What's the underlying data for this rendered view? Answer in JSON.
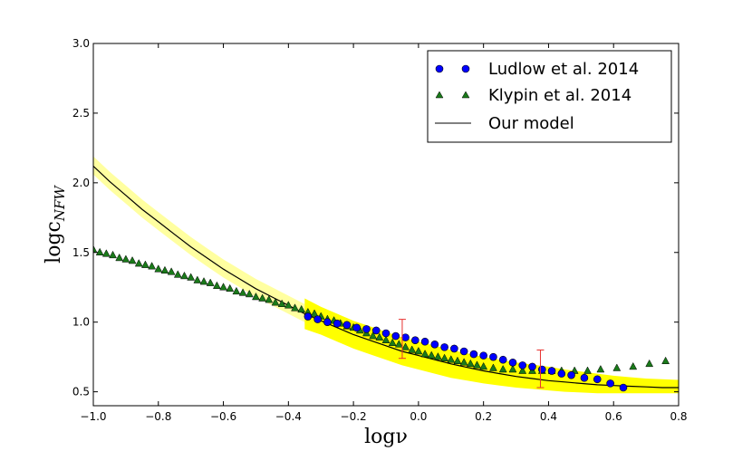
{
  "chart_data": {
    "type": "scatter",
    "title": "",
    "xlabel": "logν",
    "ylabel": "logc_NFW",
    "ylabel_main": "logc",
    "ylabel_sub": "NFW",
    "xlim": [
      -1.0,
      0.8
    ],
    "ylim": [
      0.4,
      3.0
    ],
    "x_ticks": [
      -1.0,
      -0.8,
      -0.6,
      -0.4,
      -0.2,
      0.0,
      0.2,
      0.4,
      0.6,
      0.8
    ],
    "x_tick_labels": [
      "−1.0",
      "−0.8",
      "−0.6",
      "−0.4",
      "−0.2",
      "0.0",
      "0.2",
      "0.4",
      "0.6",
      "0.8"
    ],
    "y_ticks": [
      0.5,
      1.0,
      1.5,
      2.0,
      2.5,
      3.0
    ],
    "y_tick_labels": [
      "0.5",
      "1.0",
      "1.5",
      "2.0",
      "2.5",
      "3.0"
    ],
    "grid": false,
    "legend_position": "top-right",
    "colors": {
      "ludlow": "#0000ff",
      "klypin": "#1a7a1a",
      "model": "#000000",
      "band_light": "#ffffa0",
      "band_bright": "#ffff00",
      "errorbar": "#e8312f"
    },
    "series": [
      {
        "name": "Ludlow et al. 2014",
        "marker": "circle",
        "x": [
          -0.34,
          -0.31,
          -0.28,
          -0.25,
          -0.22,
          -0.19,
          -0.16,
          -0.13,
          -0.1,
          -0.07,
          -0.04,
          -0.01,
          0.02,
          0.05,
          0.08,
          0.11,
          0.14,
          0.17,
          0.2,
          0.23,
          0.26,
          0.29,
          0.32,
          0.35,
          0.38,
          0.41,
          0.44,
          0.47,
          0.51,
          0.55,
          0.59,
          0.63
        ],
        "y": [
          1.04,
          1.02,
          1.0,
          0.99,
          0.98,
          0.96,
          0.95,
          0.94,
          0.92,
          0.9,
          0.89,
          0.87,
          0.86,
          0.84,
          0.82,
          0.81,
          0.79,
          0.77,
          0.76,
          0.75,
          0.73,
          0.71,
          0.69,
          0.68,
          0.66,
          0.65,
          0.63,
          0.62,
          0.6,
          0.59,
          0.56,
          0.53
        ]
      },
      {
        "name": "Klypin et al. 2014",
        "marker": "triangle",
        "x": [
          -1.0,
          -0.98,
          -0.96,
          -0.94,
          -0.92,
          -0.9,
          -0.88,
          -0.86,
          -0.84,
          -0.82,
          -0.8,
          -0.78,
          -0.76,
          -0.74,
          -0.72,
          -0.7,
          -0.68,
          -0.66,
          -0.64,
          -0.62,
          -0.6,
          -0.58,
          -0.56,
          -0.54,
          -0.52,
          -0.5,
          -0.48,
          -0.46,
          -0.44,
          -0.42,
          -0.4,
          -0.38,
          -0.36,
          -0.34,
          -0.32,
          -0.3,
          -0.28,
          -0.26,
          -0.24,
          -0.22,
          -0.2,
          -0.18,
          -0.16,
          -0.14,
          -0.12,
          -0.1,
          -0.08,
          -0.06,
          -0.04,
          -0.02,
          0.0,
          0.02,
          0.04,
          0.06,
          0.08,
          0.1,
          0.12,
          0.14,
          0.16,
          0.18,
          0.2,
          0.23,
          0.26,
          0.29,
          0.32,
          0.35,
          0.38,
          0.41,
          0.44,
          0.48,
          0.52,
          0.56,
          0.61,
          0.66,
          0.71,
          0.76
        ],
        "y": [
          1.52,
          1.5,
          1.49,
          1.48,
          1.46,
          1.45,
          1.44,
          1.42,
          1.41,
          1.4,
          1.38,
          1.37,
          1.36,
          1.34,
          1.33,
          1.32,
          1.3,
          1.29,
          1.28,
          1.26,
          1.25,
          1.24,
          1.22,
          1.21,
          1.2,
          1.18,
          1.17,
          1.16,
          1.14,
          1.13,
          1.12,
          1.1,
          1.09,
          1.07,
          1.06,
          1.04,
          1.02,
          1.01,
          0.99,
          0.97,
          0.96,
          0.94,
          0.92,
          0.9,
          0.89,
          0.87,
          0.85,
          0.84,
          0.82,
          0.8,
          0.79,
          0.77,
          0.76,
          0.75,
          0.74,
          0.73,
          0.72,
          0.71,
          0.7,
          0.69,
          0.68,
          0.67,
          0.66,
          0.66,
          0.65,
          0.65,
          0.65,
          0.65,
          0.65,
          0.65,
          0.65,
          0.66,
          0.67,
          0.68,
          0.7,
          0.72
        ]
      },
      {
        "name": "Our model",
        "marker": "line",
        "x": [
          -1.0,
          -0.95,
          -0.9,
          -0.85,
          -0.8,
          -0.75,
          -0.7,
          -0.65,
          -0.6,
          -0.55,
          -0.5,
          -0.45,
          -0.4,
          -0.35,
          -0.3,
          -0.25,
          -0.2,
          -0.15,
          -0.1,
          -0.05,
          0.0,
          0.05,
          0.1,
          0.15,
          0.2,
          0.25,
          0.3,
          0.35,
          0.4,
          0.45,
          0.5,
          0.55,
          0.6,
          0.65,
          0.7,
          0.75,
          0.8
        ],
        "y": [
          2.12,
          2.01,
          1.91,
          1.81,
          1.72,
          1.63,
          1.54,
          1.46,
          1.38,
          1.31,
          1.24,
          1.18,
          1.12,
          1.06,
          1.01,
          0.96,
          0.91,
          0.87,
          0.83,
          0.79,
          0.76,
          0.73,
          0.7,
          0.675,
          0.65,
          0.63,
          0.61,
          0.595,
          0.58,
          0.57,
          0.56,
          0.55,
          0.545,
          0.54,
          0.535,
          0.53,
          0.53
        ]
      }
    ],
    "band_light": {
      "x": [
        -1.0,
        -0.95,
        -0.9,
        -0.85,
        -0.8,
        -0.75,
        -0.7,
        -0.65,
        -0.6,
        -0.55,
        -0.5,
        -0.45,
        -0.4,
        -0.35
      ],
      "upper": [
        2.19,
        2.08,
        1.98,
        1.88,
        1.79,
        1.7,
        1.61,
        1.53,
        1.45,
        1.38,
        1.31,
        1.25,
        1.19,
        1.13
      ],
      "lower": [
        2.06,
        1.95,
        1.85,
        1.75,
        1.66,
        1.57,
        1.48,
        1.4,
        1.32,
        1.25,
        1.18,
        1.12,
        1.06,
        1.0
      ]
    },
    "band_bright": {
      "x": [
        -0.35,
        -0.3,
        -0.25,
        -0.2,
        -0.15,
        -0.1,
        -0.05,
        0.0,
        0.05,
        0.1,
        0.15,
        0.2,
        0.25,
        0.3,
        0.35,
        0.4,
        0.45,
        0.5,
        0.55,
        0.6,
        0.65,
        0.7,
        0.75,
        0.8
      ],
      "upper": [
        1.17,
        1.11,
        1.06,
        1.01,
        0.97,
        0.93,
        0.89,
        0.86,
        0.83,
        0.8,
        0.775,
        0.75,
        0.73,
        0.71,
        0.695,
        0.68,
        0.66,
        0.645,
        0.63,
        0.615,
        0.605,
        0.595,
        0.59,
        0.585
      ],
      "lower": [
        0.95,
        0.91,
        0.86,
        0.81,
        0.77,
        0.73,
        0.69,
        0.66,
        0.63,
        0.6,
        0.58,
        0.56,
        0.545,
        0.53,
        0.52,
        0.51,
        0.5,
        0.495,
        0.49,
        0.49,
        0.49,
        0.49,
        0.49,
        0.49
      ]
    },
    "error_bars": [
      {
        "x": -0.05,
        "y": 0.88,
        "low": 0.74,
        "high": 1.02
      },
      {
        "x": 0.375,
        "y": 0.66,
        "low": 0.53,
        "high": 0.8
      }
    ]
  }
}
